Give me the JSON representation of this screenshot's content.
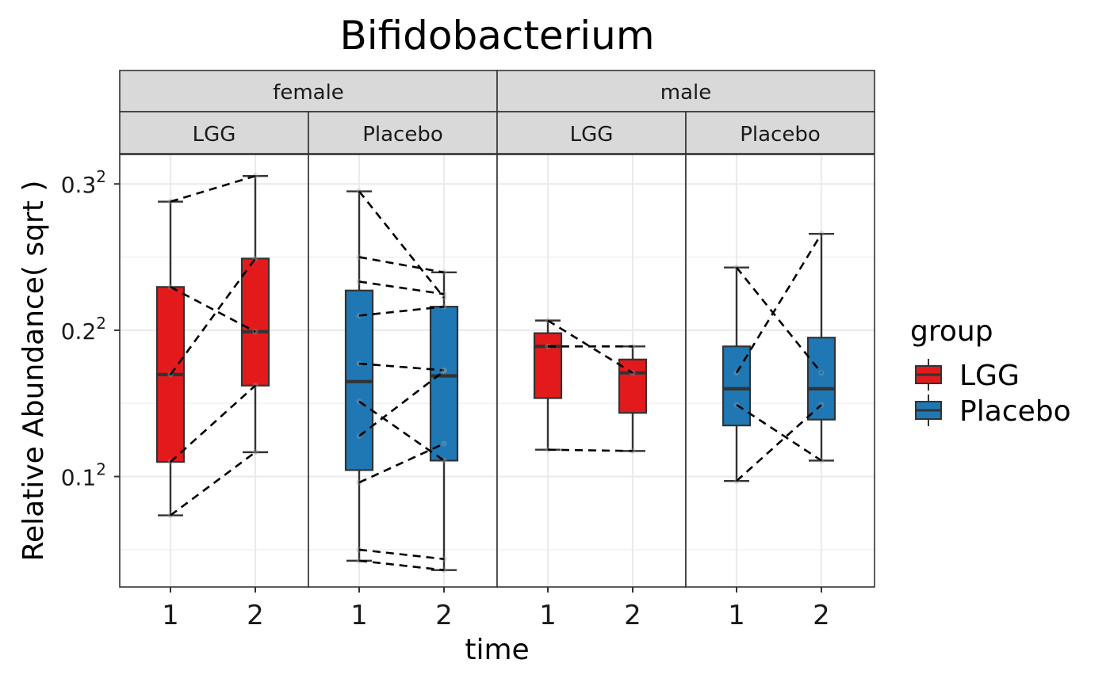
{
  "chart_data": {
    "type": "box",
    "title": "Bifidobacterium",
    "xlabel": "time",
    "ylabel": "Relative Abundance( sqrt )",
    "y_scale": "sqrt",
    "y_tick_values": [
      0.01,
      0.04,
      0.09
    ],
    "y_tick_bases": [
      "0.1",
      "0.2",
      "0.3"
    ],
    "y_tick_exponent": "2",
    "y_range": [
      0.0006,
      0.1025
    ],
    "x_categories": [
      "1",
      "2"
    ],
    "grid": true,
    "legend": {
      "title": "group",
      "position": "right",
      "entries": [
        {
          "label": "LGG",
          "color": "#E31A1C"
        },
        {
          "label": "Placebo",
          "color": "#1F78B4"
        }
      ]
    },
    "facet_rows": [
      "female",
      "male"
    ],
    "facets": [
      {
        "sex": "female",
        "group": "LGG",
        "color": "#E31A1C",
        "boxes": [
          {
            "time": "1",
            "min": 0.0054,
            "q1": 0.0121,
            "median": 0.0288,
            "q3": 0.0527,
            "max": 0.0829
          },
          {
            "time": "2",
            "min": 0.0136,
            "q1": 0.0263,
            "median": 0.0396,
            "q3": 0.062,
            "max": 0.0933
          }
        ],
        "pairs": [
          [
            0.0829,
            0.0933
          ],
          [
            0.0527,
            0.0396
          ],
          [
            0.0288,
            0.062
          ],
          [
            0.0121,
            0.0263
          ],
          [
            0.0054,
            0.0136
          ]
        ]
      },
      {
        "sex": "female",
        "group": "Placebo",
        "color": "#1F78B4",
        "boxes": [
          {
            "time": "1",
            "min": 0.0018,
            "q1": 0.0109,
            "median": 0.0272,
            "q3": 0.0516,
            "max": 0.087
          },
          {
            "time": "2",
            "min": 0.0013,
            "q1": 0.0123,
            "median": 0.0285,
            "q3": 0.0467,
            "max": 0.0574
          }
        ],
        "pairs": [
          [
            0.087,
            0.0494
          ],
          [
            0.0625,
            0.0574
          ],
          [
            0.0544,
            0.0505
          ],
          [
            0.0441,
            0.0467
          ],
          [
            0.0314,
            0.0298
          ],
          [
            0.0229,
            0.0123
          ],
          [
            0.0163,
            0.0296
          ],
          [
            0.0092,
            0.015
          ],
          [
            0.0025,
            0.0019
          ],
          [
            0.0018,
            0.0013
          ]
        ]
      },
      {
        "sex": "male",
        "group": "LGG",
        "color": "#E31A1C",
        "boxes": [
          {
            "time": "1",
            "min": 0.014,
            "q1": 0.0236,
            "median": 0.0357,
            "q3": 0.0392,
            "max": 0.0427
          },
          {
            "time": "2",
            "min": 0.0138,
            "q1": 0.0206,
            "median": 0.0292,
            "q3": 0.0324,
            "max": 0.0357
          }
        ],
        "pairs": [
          [
            0.0427,
            0.0292
          ],
          [
            0.0357,
            0.0357
          ],
          [
            0.014,
            0.0138
          ]
        ]
      },
      {
        "sex": "male",
        "group": "Placebo",
        "color": "#1F78B4",
        "boxes": [
          {
            "time": "1",
            "min": 0.0094,
            "q1": 0.0182,
            "median": 0.0256,
            "q3": 0.0357,
            "max": 0.059
          },
          {
            "time": "2",
            "min": 0.0123,
            "q1": 0.0193,
            "median": 0.0256,
            "q3": 0.038,
            "max": 0.0707
          }
        ],
        "pairs": [
          [
            0.059,
            0.0292
          ],
          [
            0.0292,
            0.0707
          ],
          [
            0.0222,
            0.0123
          ],
          [
            0.0094,
            0.0222
          ]
        ]
      }
    ]
  }
}
